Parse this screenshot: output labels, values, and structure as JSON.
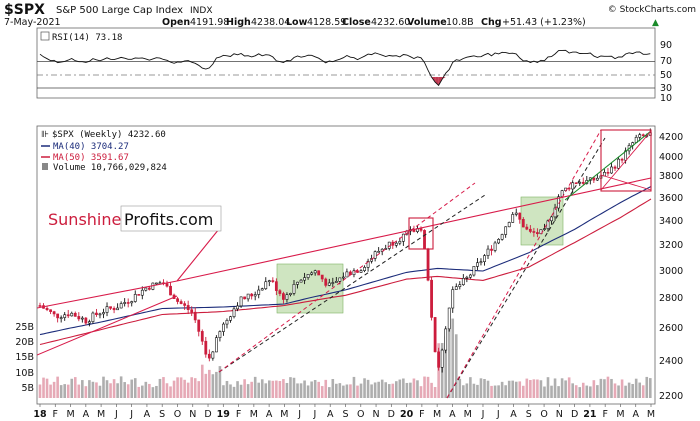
{
  "header": {
    "symbol": "$SPX",
    "name": "S&P 500 Large Cap Index",
    "exchange": "INDX",
    "source": "© StockCharts.com",
    "date": "7-May-2021",
    "open_label": "Open",
    "open": "4191.98",
    "high_label": "High",
    "high": "4238.04",
    "low_label": "Low",
    "low": "4128.59",
    "close_label": "Close",
    "close": "4232.60",
    "volume_label": "Volume",
    "volume": "10.8B",
    "chg_label": "Chg",
    "chg": "+51.43 (+1.23%)",
    "chg_arrow": "▲"
  },
  "rsi_panel": {
    "label": "RSI(14) 73.18",
    "ticks": [
      "90",
      "70",
      "50",
      "30",
      "10"
    ]
  },
  "price_panel": {
    "legend": {
      "price": "$SPX (Weekly) 4232.60",
      "ma40": "MA(40) 3704.27",
      "ma50": "MA(50) 3591.67",
      "volume": "Volume 10,766,029,824"
    },
    "price_ticks": [
      "4200",
      "4000",
      "3800",
      "3600",
      "3400",
      "3200",
      "3000",
      "2800",
      "2600",
      "2400",
      "2200"
    ],
    "volume_ticks": [
      "25B",
      "20B",
      "15B",
      "10B",
      "5B"
    ],
    "watermark_a": "Sunshine",
    "watermark_b": "Profits.com"
  },
  "x_axis": {
    "labels": [
      "18",
      "F",
      "M",
      "A",
      "M",
      "J",
      "J",
      "A",
      "S",
      "O",
      "N",
      "D",
      "19",
      "F",
      "M",
      "A",
      "M",
      "J",
      "J",
      "A",
      "S",
      "O",
      "N",
      "D",
      "20",
      "F",
      "M",
      "A",
      "M",
      "J",
      "J",
      "A",
      "S",
      "O",
      "N",
      "D",
      "21",
      "F",
      "M",
      "A",
      "M"
    ]
  },
  "colors": {
    "up": "#111111",
    "down": "#cc1d3d",
    "ma40": "#1c2c7a",
    "ma50": "#cc1d3d",
    "rsi": "#111111",
    "rsi_fill": "#4f7a4f",
    "box_green": "#a8cf8e",
    "trend_red": "#d81b4a",
    "trend_green": "#1a8a2a",
    "vol_up": "#aeaeae",
    "vol_down": "#e6a9b6"
  },
  "chart_data": {
    "type": "line",
    "title": "$SPX S&P 500 Large Cap Index INDX",
    "frequency": "Weekly",
    "x_start": "2018-01",
    "x_end": "2021-05",
    "ylim": [
      2200,
      4300
    ],
    "series": [
      {
        "name": "$SPX (Weekly)",
        "points": [
          [
            "2018-01",
            2750
          ],
          [
            "2018-02",
            2680
          ],
          [
            "2018-03",
            2700
          ],
          [
            "2018-04",
            2650
          ],
          [
            "2018-05",
            2710
          ],
          [
            "2018-06",
            2740
          ],
          [
            "2018-07",
            2800
          ],
          [
            "2018-08",
            2880
          ],
          [
            "2018-09",
            2920
          ],
          [
            "2018-10",
            2780
          ],
          [
            "2018-11",
            2700
          ],
          [
            "2018-12",
            2400
          ],
          [
            "2019-01",
            2620
          ],
          [
            "2019-02",
            2780
          ],
          [
            "2019-03",
            2830
          ],
          [
            "2019-04",
            2940
          ],
          [
            "2019-05",
            2800
          ],
          [
            "2019-06",
            2940
          ],
          [
            "2019-07",
            3000
          ],
          [
            "2019-08",
            2880
          ],
          [
            "2019-09",
            2980
          ],
          [
            "2019-10",
            3020
          ],
          [
            "2019-11",
            3140
          ],
          [
            "2019-12",
            3220
          ],
          [
            "2020-01",
            3290
          ],
          [
            "2020-02",
            3350
          ],
          [
            "2020-03",
            2300
          ],
          [
            "2020-04",
            2850
          ],
          [
            "2020-05",
            2950
          ],
          [
            "2020-06",
            3100
          ],
          [
            "2020-07",
            3250
          ],
          [
            "2020-08",
            3480
          ],
          [
            "2020-09",
            3300
          ],
          [
            "2020-10",
            3300
          ],
          [
            "2020-11",
            3630
          ],
          [
            "2020-12",
            3750
          ],
          [
            "2021-01",
            3750
          ],
          [
            "2021-02",
            3820
          ],
          [
            "2021-03",
            3960
          ],
          [
            "2021-04",
            4180
          ],
          [
            "2021-05",
            4232.6
          ]
        ]
      },
      {
        "name": "MA(40)",
        "points": [
          [
            "2018-01",
            2560
          ],
          [
            "2018-05",
            2640
          ],
          [
            "2018-09",
            2730
          ],
          [
            "2019-01",
            2740
          ],
          [
            "2019-05",
            2760
          ],
          [
            "2019-09",
            2860
          ],
          [
            "2020-01",
            2990
          ],
          [
            "2020-03",
            3020
          ],
          [
            "2020-06",
            3000
          ],
          [
            "2020-09",
            3140
          ],
          [
            "2020-12",
            3330
          ],
          [
            "2021-03",
            3560
          ],
          [
            "2021-05",
            3704.27
          ]
        ]
      },
      {
        "name": "MA(50)",
        "points": [
          [
            "2018-01",
            2500
          ],
          [
            "2018-05",
            2590
          ],
          [
            "2018-09",
            2690
          ],
          [
            "2019-01",
            2710
          ],
          [
            "2019-05",
            2750
          ],
          [
            "2019-09",
            2820
          ],
          [
            "2020-01",
            2940
          ],
          [
            "2020-03",
            2960
          ],
          [
            "2020-06",
            2930
          ],
          [
            "2020-09",
            3030
          ],
          [
            "2020-12",
            3220
          ],
          [
            "2021-03",
            3430
          ],
          [
            "2021-05",
            3591.67
          ]
        ]
      }
    ],
    "rsi": {
      "name": "RSI(14)",
      "last": 73.18,
      "ylim": [
        0,
        100
      ]
    }
  }
}
